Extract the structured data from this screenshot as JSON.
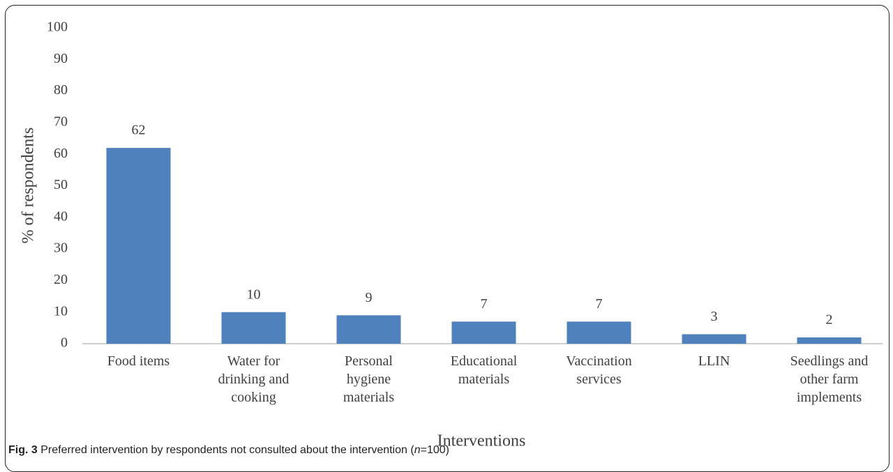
{
  "chart_data": {
    "type": "bar",
    "categories": [
      "Food items",
      "Water for drinking and cooking",
      "Personal hygiene materials",
      "Educational materials",
      "Vaccination services",
      "LLIN",
      "Seedlings and other farm implements"
    ],
    "values": [
      62,
      10,
      9,
      7,
      7,
      3,
      2
    ],
    "color": "#4f81bd",
    "ylim": [
      0,
      100
    ],
    "yticks": [
      0,
      10,
      20,
      30,
      40,
      50,
      60,
      70,
      80,
      90,
      100
    ],
    "ylabel": "% of respondents",
    "xlabel": "Interventions",
    "grid": false
  },
  "caption": {
    "label": "Fig. 3",
    "text": "Preferred intervention by respondents not consulted about the intervention (",
    "italic": "n",
    "end": "=100)"
  }
}
